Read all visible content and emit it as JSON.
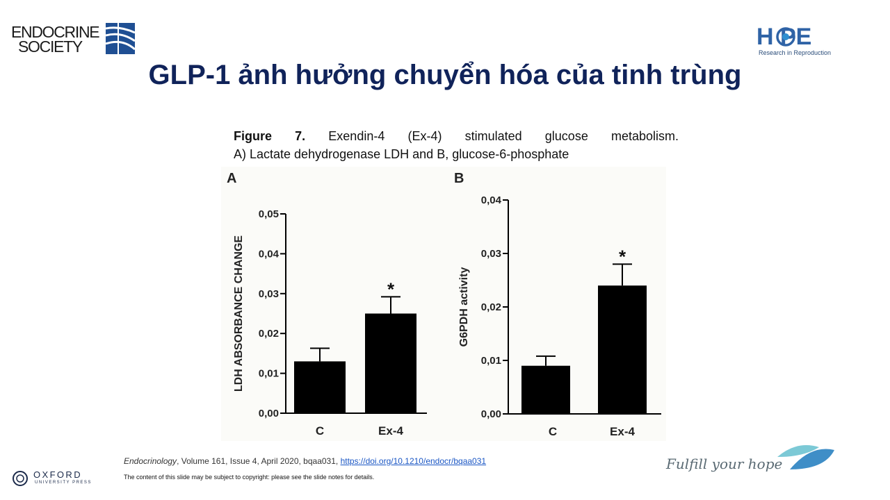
{
  "logos": {
    "endocrine_line1": "ENDOCRINE",
    "endocrine_line2": "SOCIETY",
    "hope_word": "H PE",
    "hope_sub": "Research in Reproduction",
    "oxford_word": "OXFORD",
    "oxford_sub": "UNIVERSITY PRESS",
    "fulfill": "Fulfill your hope"
  },
  "slide_title": "GLP-1 ảnh hưởng chuyển hóa của tinh trùng",
  "caption": {
    "label": "Figure 7.",
    "line1_rest": " Exendin-4 (Ex-4) stimulated glucose metabolism.",
    "line2": "A) Lactate dehydrogenase LDH and B, glucose-6-phosphate"
  },
  "citation": {
    "journal": "Endocrinology",
    "details": ", Volume 161, Issue 4, April 2020, bqaa031, ",
    "link": "https://doi.org/10.1210/endocr/bqaa031"
  },
  "copyright": "The content of this slide may be subject to copyright: please see the slide notes for details.",
  "colors": {
    "title": "#10235a",
    "bars": "#000000",
    "link": "#1a56c4",
    "hope_blue": "#2f63a6"
  },
  "chart_data": [
    {
      "type": "bar",
      "panel": "A",
      "ylabel": "LDH ABSORBANCE CHANGE",
      "categories": [
        "C",
        "Ex-4"
      ],
      "values": [
        0.013,
        0.025
      ],
      "errors": [
        0.0033,
        0.0042
      ],
      "significance": [
        "",
        "*"
      ],
      "ylim": [
        0,
        0.05
      ],
      "yticks": [
        "0,00",
        "0,01",
        "0,02",
        "0,03",
        "0,04",
        "0,05"
      ],
      "grid": false
    },
    {
      "type": "bar",
      "panel": "B",
      "ylabel": "G6PDH activity",
      "categories": [
        "C",
        "Ex-4"
      ],
      "values": [
        0.009,
        0.024
      ],
      "errors": [
        0.0018,
        0.004
      ],
      "significance": [
        "",
        "*"
      ],
      "ylim": [
        0,
        0.04
      ],
      "yticks": [
        "0,00",
        "0,01",
        "0,02",
        "0,03",
        "0,04"
      ],
      "grid": false
    }
  ]
}
